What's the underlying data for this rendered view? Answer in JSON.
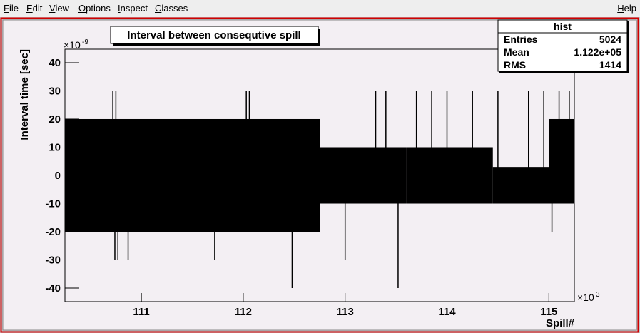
{
  "menu": {
    "items": [
      "File",
      "Edit",
      "View",
      "Options",
      "Inspect",
      "Classes"
    ],
    "help": "Help"
  },
  "chart_data": {
    "type": "band",
    "title": "Interval between consequtive spill",
    "x_label": "Spill#",
    "y_label": "Interval time [sec]",
    "x_multiplier": {
      "base": "×10",
      "exp": "3"
    },
    "y_multiplier": {
      "base": "×10",
      "exp": "-9"
    },
    "xlim": [
      110.25,
      115.25
    ],
    "ylim": [
      -44.8,
      44.8
    ],
    "xticks": [
      111,
      112,
      113,
      114,
      115
    ],
    "yticks": [
      -40,
      -30,
      -20,
      -10,
      0,
      10,
      20,
      30,
      40
    ],
    "color": "#000000",
    "bands": [
      {
        "x": [
          110.25,
          112.75
        ],
        "y": [
          -20,
          20
        ]
      },
      {
        "x": [
          112.75,
          113.6
        ],
        "y": [
          -10,
          10
        ]
      },
      {
        "x": [
          113.6,
          114.45
        ],
        "y": [
          -10,
          10
        ]
      },
      {
        "x": [
          114.45,
          115.0
        ],
        "y": [
          -10,
          3
        ]
      },
      {
        "x": [
          115.0,
          115.25
        ],
        "y": [
          -10,
          20
        ]
      }
    ],
    "spikes": {
      "x": [
        110.72,
        110.75,
        110.74,
        110.77,
        110.87,
        111.72,
        112.03,
        112.06,
        112.48,
        113.0,
        113.3,
        113.4,
        113.52,
        113.7,
        113.85,
        114.0,
        114.25,
        114.5,
        114.8,
        114.95,
        115.03,
        115.1,
        115.2
      ],
      "y": [
        30,
        30,
        -30,
        -30,
        -30,
        -30,
        30,
        30,
        -40,
        -30,
        30,
        30,
        -40,
        30,
        30,
        30,
        30,
        30,
        30,
        30,
        -20,
        30,
        30
      ]
    },
    "stats": {
      "title": "hist",
      "rows": [
        [
          "Entries",
          "5024"
        ],
        [
          "Mean",
          "1.122e+05"
        ],
        [
          "RMS",
          "1414"
        ]
      ]
    }
  }
}
